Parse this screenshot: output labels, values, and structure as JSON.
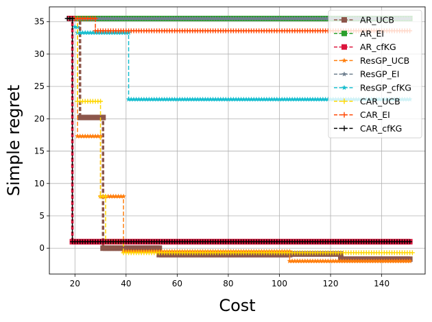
{
  "chart_data": {
    "type": "line",
    "title": "",
    "xlabel": "Cost",
    "ylabel": "Simple regret",
    "xlim": [
      10,
      157
    ],
    "ylim": [
      -4,
      37.3
    ],
    "xticks": [
      20,
      40,
      60,
      80,
      100,
      120,
      140
    ],
    "yticks": [
      0,
      5,
      10,
      15,
      20,
      25,
      30,
      35
    ],
    "grid": true,
    "legend_position": "top-right",
    "series": [
      {
        "name": "AR_UCB",
        "color": "#8c564b",
        "marker": "square",
        "linestyle": "dashed",
        "linewidth": 3.5,
        "x": [
          18,
          22,
          22,
          31,
          31,
          53,
          53,
          104,
          104,
          124,
          124,
          151
        ],
        "y": [
          35.5,
          35.5,
          20.2,
          20.2,
          0,
          0,
          -1,
          -1,
          -0.9,
          -0.9,
          -1.7,
          -1.7
        ]
      },
      {
        "name": "AR_EI",
        "color": "#2ca02c",
        "marker": "square",
        "linestyle": "dashed",
        "linewidth": 3.5,
        "x": [
          18,
          151
        ],
        "y": [
          35.5,
          35.5
        ]
      },
      {
        "name": "AR_cfKG",
        "color": "#dc143c",
        "marker": "square",
        "linestyle": "dashed",
        "linewidth": 3.5,
        "x": [
          18,
          19,
          19,
          151
        ],
        "y": [
          35.5,
          35.5,
          1,
          1
        ]
      },
      {
        "name": "ResGP_UCB",
        "color": "#ff7f0e",
        "marker": "star",
        "linestyle": "dashed",
        "linewidth": 1.5,
        "x": [
          18,
          21,
          21,
          30,
          30,
          39,
          39,
          104,
          104,
          151
        ],
        "y": [
          35.5,
          35.5,
          17.3,
          17.3,
          8,
          8,
          -0.5,
          -0.5,
          -2,
          -2
        ]
      },
      {
        "name": "ResGP_EI",
        "color": "#708090",
        "marker": "star",
        "linestyle": "dashed",
        "linewidth": 1.5,
        "x": [
          18,
          151
        ],
        "y": [
          35.5,
          35.5
        ]
      },
      {
        "name": "ResGP_cfKG",
        "color": "#17becf",
        "marker": "star",
        "linestyle": "dashed",
        "linewidth": 1.5,
        "x": [
          20,
          21,
          21,
          41,
          41,
          151
        ],
        "y": [
          34.2,
          34.2,
          33.3,
          33.3,
          23,
          23
        ]
      },
      {
        "name": "CAR_UCB",
        "color": "#ffd700",
        "marker": "plus",
        "linestyle": "dashed",
        "linewidth": 1.5,
        "x": [
          18,
          21,
          21,
          30,
          30,
          32,
          32,
          39,
          39,
          152
        ],
        "y": [
          35.5,
          35.5,
          22.7,
          22.7,
          8,
          8,
          1,
          1,
          -0.7,
          -0.7
        ]
      },
      {
        "name": "CAR_EI",
        "color": "#ff4500",
        "marker": "plus",
        "linestyle": "dashed",
        "linewidth": 1.5,
        "x": [
          18,
          28,
          28,
          151
        ],
        "y": [
          35.5,
          35.5,
          33.6,
          33.6
        ]
      },
      {
        "name": "CAR_cfKG",
        "color": "#000000",
        "marker": "plus",
        "linestyle": "dashed",
        "linewidth": 1.5,
        "x": [
          17,
          19,
          19,
          151
        ],
        "y": [
          35.5,
          35.5,
          1,
          1
        ]
      }
    ]
  }
}
